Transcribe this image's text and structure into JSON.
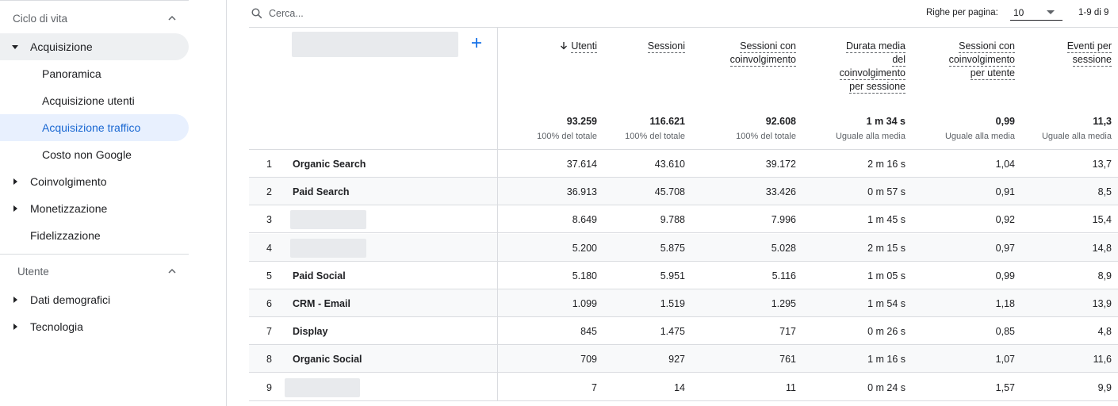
{
  "sidebar": {
    "section_lifecycle": "Ciclo di vita",
    "acquisition": "Acquisizione",
    "overview": "Panoramica",
    "user_acquisition": "Acquisizione utenti",
    "traffic_acquisition": "Acquisizione traffico",
    "non_google_cost": "Costo non Google",
    "engagement": "Coinvolgimento",
    "monetization": "Monetizzazione",
    "retention": "Fidelizzazione",
    "section_user": "Utente",
    "demographics": "Dati demografici",
    "technology": "Tecnologia"
  },
  "toolbar": {
    "search_placeholder": "Cerca...",
    "rows_per_page_label": "Righe per pagina:",
    "rows_per_page_value": "10",
    "pager": "1-9 di 9"
  },
  "table": {
    "columns": [
      {
        "id": "users",
        "lines": [
          "Utenti"
        ],
        "sorted": true
      },
      {
        "id": "sessions",
        "lines": [
          "Sessioni"
        ]
      },
      {
        "id": "engaged",
        "lines": [
          "Sessioni con",
          "coinvolgimento"
        ]
      },
      {
        "id": "duration",
        "lines": [
          "Durata media",
          "del",
          "coinvolgimento",
          "per sessione"
        ]
      },
      {
        "id": "engaged_per_user",
        "lines": [
          "Sessioni con",
          "coinvolgimento",
          "per utente"
        ]
      },
      {
        "id": "events",
        "lines": [
          "Eventi per",
          "sessione"
        ]
      }
    ],
    "totals": [
      "93.259",
      "116.621",
      "92.608",
      "1 m 34 s",
      "0,99",
      "11,3"
    ],
    "totals_sub": [
      "100% del totale",
      "100% del totale",
      "100% del totale",
      "Uguale alla media",
      "Uguale alla media",
      "Uguale alla media"
    ],
    "rows": [
      {
        "n": "1",
        "label": "Organic Search",
        "values": [
          "37.614",
          "43.610",
          "39.172",
          "2 m 16 s",
          "1,04",
          "13,7"
        ]
      },
      {
        "n": "2",
        "label": "Paid Search",
        "values": [
          "36.913",
          "45.708",
          "33.426",
          "0 m 57 s",
          "0,91",
          "8,5"
        ]
      },
      {
        "n": "3",
        "label": "",
        "values": [
          "8.649",
          "9.788",
          "7.996",
          "1 m 45 s",
          "0,92",
          "15,4"
        ]
      },
      {
        "n": "4",
        "label": "",
        "values": [
          "5.200",
          "5.875",
          "5.028",
          "2 m 15 s",
          "0,97",
          "14,8"
        ]
      },
      {
        "n": "5",
        "label": "Paid Social",
        "values": [
          "5.180",
          "5.951",
          "5.116",
          "1 m 05 s",
          "0,99",
          "8,9"
        ]
      },
      {
        "n": "6",
        "label": "CRM - Email",
        "values": [
          "1.099",
          "1.519",
          "1.295",
          "1 m 54 s",
          "1,18",
          "13,9"
        ]
      },
      {
        "n": "7",
        "label": "Display",
        "values": [
          "845",
          "1.475",
          "717",
          "0 m 26 s",
          "0,85",
          "4,8"
        ]
      },
      {
        "n": "8",
        "label": "Organic Social",
        "values": [
          "709",
          "927",
          "761",
          "1 m 16 s",
          "1,07",
          "11,6"
        ]
      },
      {
        "n": "9",
        "label": "",
        "values": [
          "7",
          "14",
          "11",
          "0 m 24 s",
          "1,57",
          "9,9"
        ]
      }
    ]
  },
  "colors": {
    "accent": "#1967d2",
    "active_bg": "#e8f0fe",
    "border": "#dadce0"
  }
}
